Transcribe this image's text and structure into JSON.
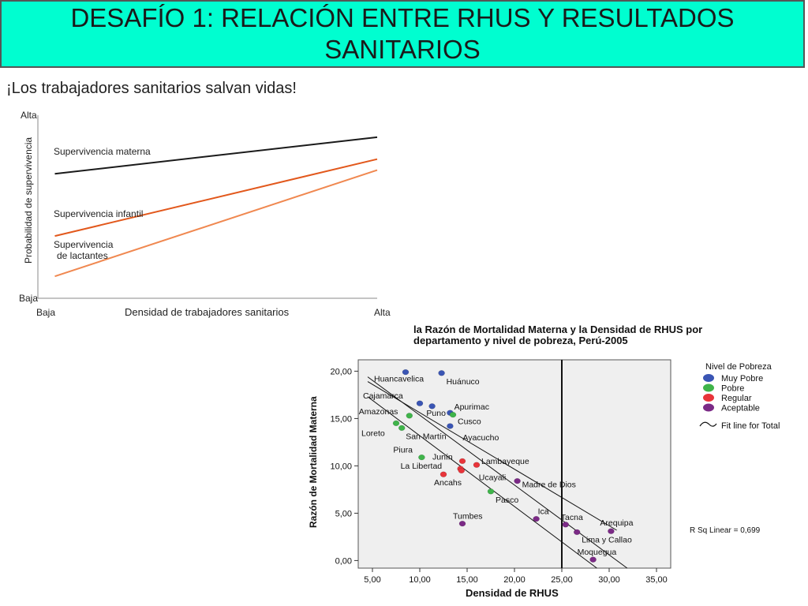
{
  "slide": {
    "title": "DESAFÍO 1: RELACIÓN ENTRE RHUS Y RESULTADOS SANITARIOS",
    "subtitle": "¡Los trabajadores sanitarios salvan vidas!"
  },
  "chart_data": [
    {
      "type": "line",
      "ylabel": "Probabilidad de supervivencia",
      "xlabel": "Densidad de trabajadores sanitarios",
      "y_ticks": [
        "Alta",
        "Baja"
      ],
      "x_ticks": [
        "Baja",
        "Alta"
      ],
      "xlim": [
        0,
        1
      ],
      "ylim": [
        0,
        1
      ],
      "series": [
        {
          "name": "Supervivencia materna",
          "color": "#1a1a1a",
          "x": [
            0.05,
            1.0
          ],
          "y": [
            0.68,
            0.88
          ]
        },
        {
          "name": "Supervivencia infantil",
          "color": "#e2581c",
          "x": [
            0.05,
            1.0
          ],
          "y": [
            0.34,
            0.76
          ]
        },
        {
          "name": "Supervivencia de lactantes",
          "color": "#f08850",
          "x": [
            0.05,
            1.0
          ],
          "y": [
            0.12,
            0.7
          ]
        }
      ]
    },
    {
      "type": "scatter",
      "title": "la Razón de Mortalidad Materna y la Densidad de RHUS por departamento y nivel de pobreza, Perú-2005",
      "xlabel": "Densidad de RHUS",
      "ylabel": "Razón de Mortalidad Materna",
      "xlim": [
        3.5,
        36.5
      ],
      "ylim": [
        -0.8,
        21.2
      ],
      "x_ticks": [
        "5,00",
        "10,00",
        "15,00",
        "20,00",
        "25,00",
        "30,00",
        "35,00"
      ],
      "y_ticks": [
        "0,00",
        "5,00",
        "10,00",
        "15,00",
        "20,00"
      ],
      "reference_line_x": 25.0,
      "legend": {
        "title": "Nivel de Pobreza",
        "position": "right",
        "items": [
          {
            "label": "Muy Pobre",
            "color": "#3a55b4"
          },
          {
            "label": "Pobre",
            "color": "#3fb44a"
          },
          {
            "label": "Regular",
            "color": "#e8343a"
          },
          {
            "label": "Aceptable",
            "color": "#7b2a86"
          }
        ],
        "fit_label": "Fit line for Total"
      },
      "annotation": "R Sq Linear = 0,699",
      "fit_lines": [
        {
          "x": [
            4.5,
            30.8
          ],
          "y": [
            18.9,
            3.2
          ]
        },
        {
          "x": [
            4.5,
            31.9
          ],
          "y": [
            19.4,
            -0.8
          ]
        },
        {
          "x": [
            4.5,
            28.7
          ],
          "y": [
            17.3,
            -0.8
          ]
        }
      ],
      "points": [
        {
          "label": "Huancavelica",
          "x": 8.5,
          "y": 19.9,
          "level": "Muy Pobre"
        },
        {
          "label": "Huánuco",
          "x": 12.3,
          "y": 19.8,
          "level": "Muy Pobre"
        },
        {
          "label": "Cajamarca",
          "x": 10.0,
          "y": 16.6,
          "level": "Muy Pobre"
        },
        {
          "label": "Apurimac",
          "x": 11.3,
          "y": 16.3,
          "level": "Muy Pobre"
        },
        {
          "label": "Amazonas",
          "x": 8.9,
          "y": 15.3,
          "level": "Pobre"
        },
        {
          "label": "Puno",
          "x": 13.2,
          "y": 15.6,
          "level": "Muy Pobre"
        },
        {
          "label": "Cusco",
          "x": 13.5,
          "y": 15.4,
          "level": "Pobre"
        },
        {
          "label": "Ayacucho",
          "x": 13.2,
          "y": 14.2,
          "level": "Muy Pobre"
        },
        {
          "label": "Loreto",
          "x": 7.5,
          "y": 14.5,
          "level": "Pobre"
        },
        {
          "label": "San Martín",
          "x": 8.1,
          "y": 14.0,
          "level": "Pobre"
        },
        {
          "label": "Piura",
          "x": 10.2,
          "y": 10.9,
          "level": "Pobre"
        },
        {
          "label": "Junín",
          "x": 14.5,
          "y": 10.5,
          "level": "Regular"
        },
        {
          "label": "Lambayeque",
          "x": 16.0,
          "y": 10.1,
          "level": "Regular"
        },
        {
          "label": "La Libertad",
          "x": 14.3,
          "y": 9.7,
          "level": "Regular"
        },
        {
          "label": "Ancahs",
          "x": 12.5,
          "y": 9.1,
          "level": "Regular"
        },
        {
          "label": "Ucayali",
          "x": 14.4,
          "y": 9.5,
          "level": "Regular"
        },
        {
          "label": "Madre de Dios",
          "x": 20.3,
          "y": 8.4,
          "level": "Aceptable"
        },
        {
          "label": "Pasco",
          "x": 17.5,
          "y": 7.3,
          "level": "Pobre"
        },
        {
          "label": "Ica",
          "x": 22.3,
          "y": 4.4,
          "level": "Aceptable"
        },
        {
          "label": "Tumbes",
          "x": 14.5,
          "y": 3.9,
          "level": "Aceptable"
        },
        {
          "label": "Tacna",
          "x": 25.4,
          "y": 3.8,
          "level": "Aceptable"
        },
        {
          "label": "Arequipa",
          "x": 30.2,
          "y": 3.1,
          "level": "Aceptable"
        },
        {
          "label": "Lima y Callao",
          "x": 26.6,
          "y": 3.0,
          "level": "Aceptable"
        },
        {
          "label": "Moquegua",
          "x": 28.3,
          "y": 0.1,
          "level": "Aceptable"
        }
      ]
    }
  ]
}
